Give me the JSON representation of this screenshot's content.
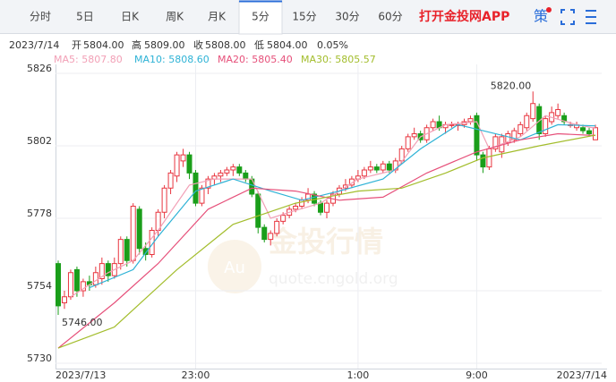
{
  "toolbar": {
    "tabs": [
      "分时",
      "5日",
      "日K",
      "周K",
      "月K",
      "5分",
      "15分",
      "30分",
      "60分"
    ],
    "active_tab": 5,
    "app_link": "打开金投网APP",
    "icon_text": "策"
  },
  "info": {
    "date": "2023/7/14",
    "open_label": "开",
    "open": "5804.00",
    "high_label": "高",
    "high": "5809.00",
    "close_label": "收",
    "close": "5808.00",
    "low_label": "低",
    "low": "5804.00",
    "change": "0.05%"
  },
  "watermark": {
    "logo": "Au",
    "brand": "金投行情",
    "url": "quote.cngold.org"
  },
  "chart_data": {
    "type": "candlestick",
    "up_color": "#e8353f",
    "down_color": "#1a9e1a",
    "open": [
      5763,
      5750,
      5752,
      5761,
      5754,
      5757,
      5756,
      5758,
      5763,
      5759,
      5763,
      5771,
      5764,
      5781,
      5768,
      5766,
      5774,
      5780,
      5788,
      5792,
      5797,
      5799,
      5793,
      5783,
      5788,
      5791,
      5792,
      5793,
      5794,
      5795,
      5793,
      5791,
      5786,
      5775,
      5771,
      5773,
      5777,
      5779,
      5781,
      5782,
      5784,
      5786,
      5783,
      5780,
      5783,
      5786,
      5788,
      5789,
      5791,
      5792,
      5794,
      5795,
      5794,
      5796,
      5794,
      5797,
      5801,
      5805,
      5806,
      5804,
      5808,
      5810,
      5808,
      5809,
      5809,
      5809,
      5810,
      5812,
      5799,
      5795,
      5801,
      5800,
      5803,
      5804,
      5806,
      5808,
      5811,
      5815,
      5806,
      5810,
      5812,
      5812,
      5809,
      5808,
      5808,
      5807,
      5804
    ],
    "high": [
      5764,
      5754,
      5761,
      5762,
      5758,
      5759,
      5762,
      5765,
      5764,
      5765,
      5772,
      5772,
      5783,
      5782,
      5770,
      5775,
      5781,
      5789,
      5794,
      5800,
      5801,
      5800,
      5794,
      5789,
      5792,
      5793,
      5794,
      5795,
      5796,
      5796,
      5794,
      5792,
      5787,
      5776,
      5774,
      5778,
      5780,
      5782,
      5783,
      5785,
      5788,
      5787,
      5784,
      5784,
      5787,
      5789,
      5791,
      5792,
      5794,
      5795,
      5797,
      5796,
      5797,
      5797,
      5798,
      5802,
      5806,
      5808,
      5807,
      5809,
      5811,
      5812,
      5810,
      5810,
      5810,
      5811,
      5812,
      5813,
      5800,
      5802,
      5806,
      5806,
      5807,
      5808,
      5810,
      5813,
      5820,
      5816,
      5812,
      5815,
      5816,
      5813,
      5810,
      5810,
      5809,
      5808,
      5809
    ],
    "low": [
      5746,
      5748,
      5751,
      5752,
      5752,
      5754,
      5755,
      5756,
      5757,
      5758,
      5761,
      5762,
      5763,
      5766,
      5764,
      5765,
      5772,
      5778,
      5786,
      5790,
      5795,
      5791,
      5782,
      5782,
      5786,
      5789,
      5790,
      5792,
      5792,
      5792,
      5790,
      5785,
      5773,
      5770,
      5769,
      5772,
      5776,
      5778,
      5780,
      5781,
      5783,
      5782,
      5779,
      5778,
      5782,
      5785,
      5787,
      5788,
      5790,
      5791,
      5793,
      5793,
      5793,
      5793,
      5793,
      5796,
      5800,
      5804,
      5803,
      5803,
      5807,
      5807,
      5806,
      5808,
      5807,
      5808,
      5809,
      5797,
      5793,
      5794,
      5800,
      5798,
      5802,
      5803,
      5805,
      5807,
      5810,
      5804,
      5805,
      5809,
      5811,
      5809,
      5808,
      5807,
      5806,
      5805,
      5804
    ],
    "close": [
      5749,
      5752,
      5760,
      5754,
      5757,
      5756,
      5760,
      5763,
      5759,
      5763,
      5771,
      5764,
      5782,
      5768,
      5766,
      5774,
      5780,
      5788,
      5793,
      5799,
      5799,
      5793,
      5783,
      5788,
      5791,
      5792,
      5793,
      5794,
      5795,
      5793,
      5791,
      5786,
      5775,
      5771,
      5773,
      5777,
      5779,
      5781,
      5782,
      5784,
      5786,
      5783,
      5780,
      5783,
      5786,
      5788,
      5789,
      5791,
      5792,
      5794,
      5795,
      5794,
      5796,
      5794,
      5797,
      5801,
      5805,
      5806,
      5804,
      5808,
      5810,
      5808,
      5809,
      5809,
      5809,
      5810,
      5811,
      5799,
      5795,
      5801,
      5805,
      5805,
      5806,
      5807,
      5809,
      5812,
      5816,
      5806,
      5811,
      5813,
      5814,
      5810,
      5809,
      5809,
      5807,
      5806,
      5808
    ],
    "high_label": "5820.00",
    "low_label": "5746.00",
    "series": [
      {
        "name": "MA5",
        "legend": "MA5: 5807.80",
        "color": "#f2a0b6",
        "x": [
          2,
          8,
          12,
          16,
          21,
          25,
          31,
          34,
          37,
          42,
          48,
          54,
          58,
          62,
          67,
          69,
          74,
          78,
          83,
          86
        ],
        "values": [
          5752,
          5760,
          5764,
          5774,
          5789,
          5791,
          5791,
          5778,
          5780,
          5783,
          5791,
          5794,
          5805,
          5809,
          5810,
          5801,
          5805,
          5812,
          5809,
          5807.8
        ]
      },
      {
        "name": "MA10",
        "legend": "MA10: 5808.60",
        "color": "#2fb3d6",
        "x": [
          5,
          12,
          16,
          22,
          28,
          34,
          39,
          45,
          52,
          58,
          64,
          68,
          74,
          80,
          86
        ],
        "values": [
          5755,
          5761,
          5772,
          5787,
          5791,
          5787,
          5784,
          5787,
          5791,
          5801,
          5809,
          5807,
          5804,
          5809,
          5808.6
        ]
      },
      {
        "name": "MA20",
        "legend": "MA20: 5805.40",
        "color": "#e6507a",
        "x": [
          0,
          9,
          16,
          24,
          31,
          38,
          45,
          52,
          59,
          67,
          74,
          80,
          86
        ],
        "values": [
          5735,
          5750,
          5763,
          5781,
          5788,
          5787,
          5784,
          5785,
          5793,
          5800,
          5804,
          5806,
          5805.4
        ]
      },
      {
        "name": "MA30",
        "legend": "MA30: 5805.57",
        "color": "#a3bd2c",
        "x": [
          0,
          9,
          19,
          28,
          38,
          48,
          55,
          62,
          68,
          77,
          86
        ],
        "values": [
          5735,
          5742,
          5761,
          5776,
          5783,
          5787,
          5788,
          5793,
          5798,
          5802,
          5805.57
        ]
      }
    ],
    "ylim": [
      5730,
      5826
    ],
    "yticks": [
      5730,
      5754,
      5778,
      5802,
      5826
    ],
    "xticks": [
      {
        "value": 0,
        "label": "2023/7/13"
      },
      {
        "value": 22,
        "label": "23:00"
      },
      {
        "value": 48,
        "label": "1:00"
      },
      {
        "value": 67,
        "label": "9:00"
      },
      {
        "value": 86,
        "label": "2023/7/14"
      }
    ],
    "grid": true
  }
}
